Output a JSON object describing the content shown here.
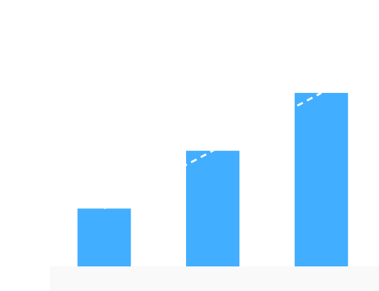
{
  "chart_data": {
    "type": "bar",
    "categories": [
      "",
      "",
      ""
    ],
    "values": [
      1,
      2,
      3
    ],
    "ylim": [
      0,
      3
    ],
    "grid": false,
    "legend": "none",
    "colors": {
      "bar": "#42AEFF",
      "trend": "#FFFFFF",
      "floor": "#F9F9F9",
      "background": "#FFFFFF"
    },
    "trend": {
      "style": "dashed",
      "values": [
        1,
        2,
        3
      ]
    }
  }
}
